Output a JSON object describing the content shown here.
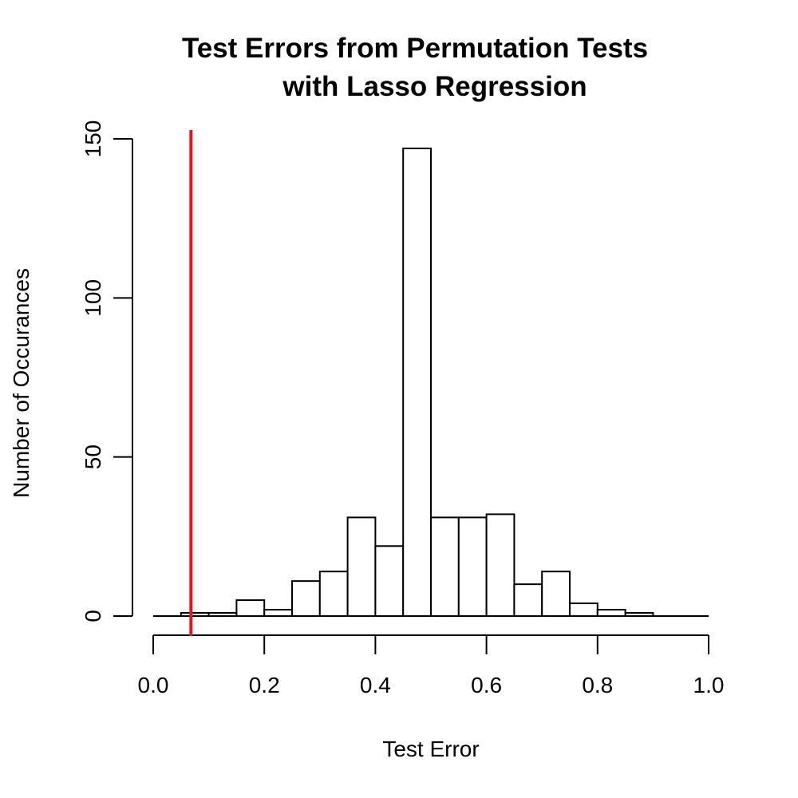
{
  "chart_data": {
    "type": "bar",
    "title_line1": "Test Errors from Permutation Tests",
    "title_line2": "with Lasso Regression",
    "xlabel": "Test Error",
    "ylabel": "Number of Occurances",
    "xlim": [
      0,
      1
    ],
    "ylim": [
      0,
      150
    ],
    "bin_width": 0.05,
    "bins": [
      {
        "x0": 0.0,
        "x1": 0.05,
        "count": 0
      },
      {
        "x0": 0.05,
        "x1": 0.1,
        "count": 1
      },
      {
        "x0": 0.1,
        "x1": 0.15,
        "count": 1
      },
      {
        "x0": 0.15,
        "x1": 0.2,
        "count": 5
      },
      {
        "x0": 0.2,
        "x1": 0.25,
        "count": 2
      },
      {
        "x0": 0.25,
        "x1": 0.3,
        "count": 11
      },
      {
        "x0": 0.3,
        "x1": 0.35,
        "count": 14
      },
      {
        "x0": 0.35,
        "x1": 0.4,
        "count": 31
      },
      {
        "x0": 0.4,
        "x1": 0.45,
        "count": 22
      },
      {
        "x0": 0.45,
        "x1": 0.5,
        "count": 147
      },
      {
        "x0": 0.5,
        "x1": 0.55,
        "count": 31
      },
      {
        "x0": 0.55,
        "x1": 0.6,
        "count": 31
      },
      {
        "x0": 0.6,
        "x1": 0.65,
        "count": 32
      },
      {
        "x0": 0.65,
        "x1": 0.7,
        "count": 10
      },
      {
        "x0": 0.7,
        "x1": 0.75,
        "count": 14
      },
      {
        "x0": 0.75,
        "x1": 0.8,
        "count": 4
      },
      {
        "x0": 0.8,
        "x1": 0.85,
        "count": 2
      },
      {
        "x0": 0.85,
        "x1": 0.9,
        "count": 1
      },
      {
        "x0": 0.9,
        "x1": 0.95,
        "count": 0
      },
      {
        "x0": 0.95,
        "x1": 1.0,
        "count": 0
      }
    ],
    "x_ticks": [
      "0.0",
      "0.2",
      "0.4",
      "0.6",
      "0.8",
      "1.0"
    ],
    "y_ticks": [
      "0",
      "50",
      "100",
      "150"
    ],
    "reference_line": {
      "x": 0.068,
      "color": "#e8141c"
    },
    "grid": false,
    "legend": "none"
  }
}
